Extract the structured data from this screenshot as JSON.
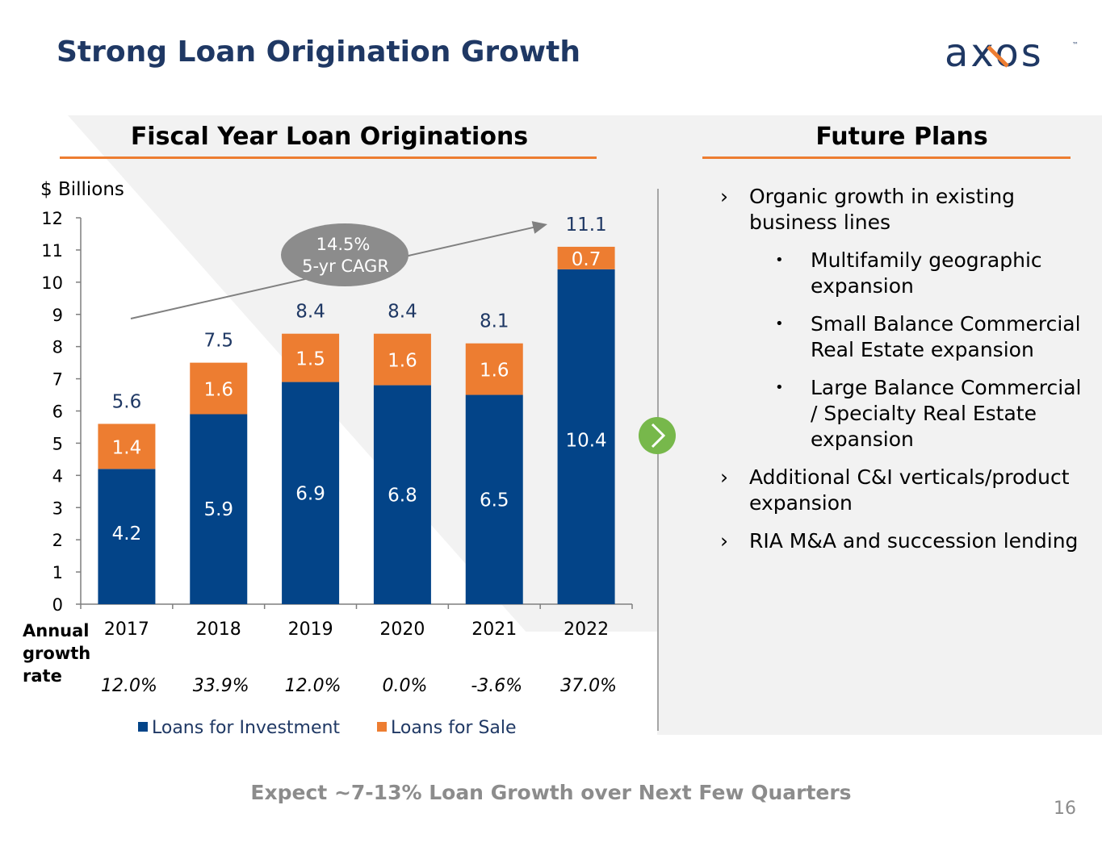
{
  "header": {
    "title": "Strong Loan Origination Growth",
    "logo_text": "axos",
    "logo_tm": "™"
  },
  "colors": {
    "navy": "#1f3864",
    "investment": "#034488",
    "sale": "#ed7d31",
    "green": "#77b84b",
    "gray_text": "#8c8c8c"
  },
  "left_section": {
    "heading": "Fiscal Year Loan Originations"
  },
  "right_section": {
    "heading": "Future Plans",
    "items": [
      {
        "marker": "›",
        "text": "Organic growth in existing business lines"
      },
      {
        "marker": "•",
        "text": "Multifamily geographic expansion",
        "sub": true
      },
      {
        "marker": "•",
        "text": "Small Balance Commercial Real Estate expansion",
        "sub": true
      },
      {
        "marker": "•",
        "text": "Large Balance Commercial / Specialty Real Estate expansion",
        "sub": true
      },
      {
        "marker": "›",
        "text": "Additional C&I verticals/product expansion"
      },
      {
        "marker": "›",
        "text": "RIA M&A and succession lending"
      }
    ]
  },
  "chart_data": {
    "type": "bar",
    "stacked": true,
    "title": "Fiscal Year Loan Originations",
    "ylabel": "$ Billions",
    "ylim": [
      0,
      12
    ],
    "yticks": [
      "0",
      "1",
      "2",
      "3",
      "4",
      "5",
      "6",
      "7",
      "8",
      "9",
      "10",
      "11",
      "12"
    ],
    "categories": [
      "2017",
      "2018",
      "2019",
      "2020",
      "2021",
      "2022"
    ],
    "series": [
      {
        "name": "Loans for Investment",
        "color": "#034488",
        "values": [
          4.2,
          5.9,
          6.9,
          6.8,
          6.5,
          10.4
        ],
        "labels": [
          "4.2",
          "5.9",
          "6.9",
          "6.8",
          "6.5",
          "10.4"
        ]
      },
      {
        "name": "Loans for Sale",
        "color": "#ed7d31",
        "values": [
          1.4,
          1.6,
          1.5,
          1.6,
          1.6,
          0.7
        ],
        "labels": [
          "1.4",
          "1.6",
          "1.5",
          "1.6",
          "1.6",
          "0.7"
        ]
      }
    ],
    "totals": [
      5.6,
      7.5,
      8.4,
      8.4,
      8.1,
      11.1
    ],
    "total_labels": [
      "5.6",
      "7.5",
      "8.4",
      "8.4",
      "8.1",
      "11.1"
    ],
    "growth_label": "Annual growth rate",
    "growth_rates": [
      "12.0%",
      "33.9%",
      "12.0%",
      "0.0%",
      "-3.6%",
      "37.0%"
    ],
    "cagr": {
      "value": "14.5%",
      "label": "5-yr CAGR"
    },
    "legend": [
      "Loans for Investment",
      "Loans for Sale"
    ],
    "legend_position": "bottom",
    "grid": false
  },
  "footer": {
    "text": "Expect ~7-13% Loan Growth over Next Few Quarters",
    "page_number": "16"
  }
}
